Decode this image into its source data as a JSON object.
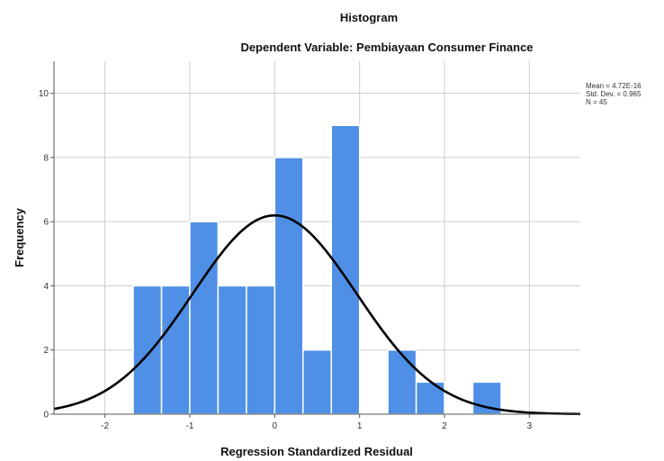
{
  "chart_data": {
    "type": "bar",
    "title": "Histogram",
    "subtitle": "Dependent Variable: Pembiayaan Consumer Finance",
    "xlabel": "Regression Standardized Residual",
    "ylabel": "Frequency",
    "xlim": [
      -2.6,
      3.6
    ],
    "ylim": [
      0,
      11
    ],
    "x_ticks": [
      -2,
      -1,
      0,
      1,
      2,
      3
    ],
    "y_ticks": [
      0,
      2,
      4,
      6,
      8,
      10
    ],
    "grid": true,
    "bin_width": 0.333,
    "bins": [
      {
        "start": -1.667,
        "end": -1.333,
        "count": 4
      },
      {
        "start": -1.333,
        "end": -1.0,
        "count": 4
      },
      {
        "start": -1.0,
        "end": -0.667,
        "count": 6
      },
      {
        "start": -0.667,
        "end": -0.333,
        "count": 4
      },
      {
        "start": -0.333,
        "end": 0.0,
        "count": 4
      },
      {
        "start": 0.0,
        "end": 0.333,
        "count": 8
      },
      {
        "start": 0.333,
        "end": 0.667,
        "count": 2
      },
      {
        "start": 0.667,
        "end": 1.0,
        "count": 9
      },
      {
        "start": 1.0,
        "end": 1.333,
        "count": 0
      },
      {
        "start": 1.333,
        "end": 1.667,
        "count": 2
      },
      {
        "start": 1.667,
        "end": 2.0,
        "count": 1
      },
      {
        "start": 2.0,
        "end": 2.333,
        "count": 0
      },
      {
        "start": 2.333,
        "end": 2.667,
        "count": 1
      }
    ],
    "normal_curve": {
      "mean": 4.72e-16,
      "sd": 0.965,
      "n": 45
    },
    "stats": [
      "Mean = 4.72E-16",
      "Std. Dev. = 0.965",
      "N = 45"
    ],
    "legend_position": "top-right",
    "colors": {
      "bar": "#4f8fe6",
      "bar_edge": "#ffffff",
      "curve": "#000000",
      "grid": "#cccccc",
      "axis": "#555555"
    }
  }
}
